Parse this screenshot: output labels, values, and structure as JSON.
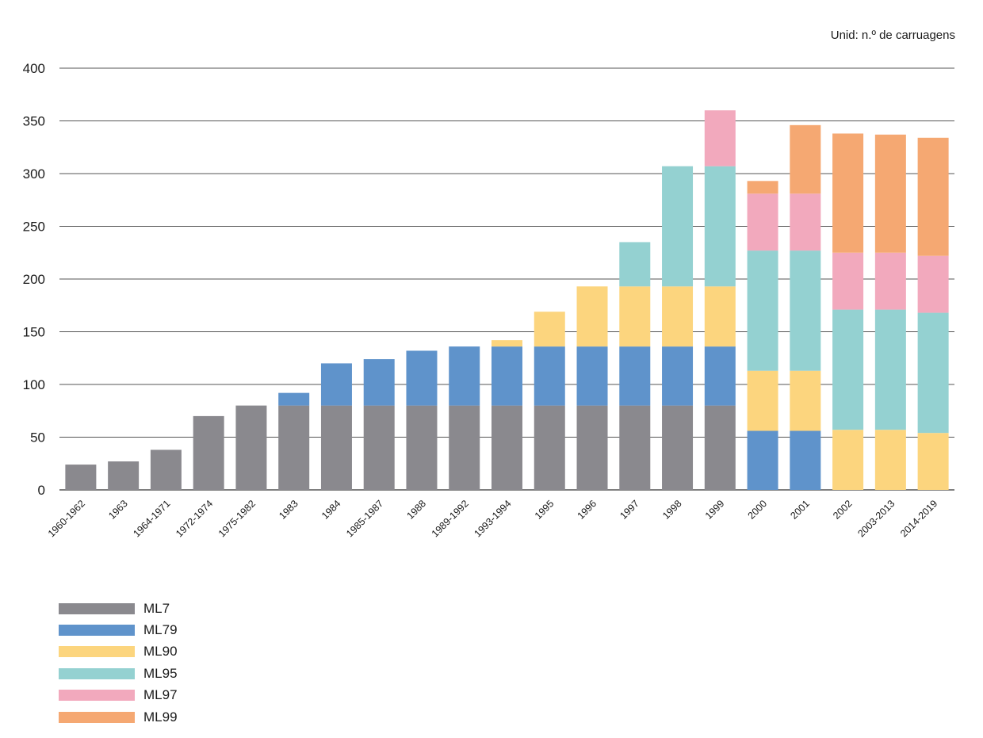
{
  "chart_data": {
    "type": "bar",
    "stacked": true,
    "unit_label": "Unid: n.º de carruagens",
    "ylim": [
      0,
      400
    ],
    "yticks": [
      0,
      50,
      100,
      150,
      200,
      250,
      300,
      350,
      400
    ],
    "grid": true,
    "legend_position": "bottom-left",
    "categories": [
      "1960-1962",
      "1963",
      "1964-1971",
      "1972-1974",
      "1975-1982",
      "1983",
      "1984",
      "1985-1987",
      "1988",
      "1989-1992",
      "1993-1994",
      "1995",
      "1996",
      "1997",
      "1998",
      "1999",
      "2000",
      "2001",
      "2002",
      "2003-2013",
      "2014-2019"
    ],
    "series": [
      {
        "name": "ML7",
        "color": "#8a898e",
        "values": [
          24,
          27,
          38,
          70,
          80,
          80,
          80,
          80,
          80,
          80,
          80,
          80,
          80,
          80,
          80,
          80,
          0,
          0,
          0,
          0,
          0
        ]
      },
      {
        "name": "ML79",
        "color": "#5f93cb",
        "values": [
          0,
          0,
          0,
          0,
          0,
          12,
          40,
          44,
          52,
          56,
          56,
          56,
          56,
          56,
          56,
          56,
          56,
          56,
          0,
          0,
          0
        ]
      },
      {
        "name": "ML90",
        "color": "#fcd57e",
        "values": [
          0,
          0,
          0,
          0,
          0,
          0,
          0,
          0,
          0,
          0,
          6,
          33,
          57,
          57,
          57,
          57,
          57,
          57,
          57,
          57,
          54
        ]
      },
      {
        "name": "ML95",
        "color": "#94d1d1",
        "values": [
          0,
          0,
          0,
          0,
          0,
          0,
          0,
          0,
          0,
          0,
          0,
          0,
          0,
          42,
          114,
          114,
          114,
          114,
          114,
          114,
          114
        ]
      },
      {
        "name": "ML97",
        "color": "#f2a9bd",
        "values": [
          0,
          0,
          0,
          0,
          0,
          0,
          0,
          0,
          0,
          0,
          0,
          0,
          0,
          0,
          0,
          53,
          54,
          54,
          54,
          54,
          54
        ]
      },
      {
        "name": "ML99",
        "color": "#f5a872",
        "values": [
          0,
          0,
          0,
          0,
          0,
          0,
          0,
          0,
          0,
          0,
          0,
          0,
          0,
          0,
          0,
          0,
          12,
          65,
          113,
          112,
          112
        ]
      }
    ]
  }
}
